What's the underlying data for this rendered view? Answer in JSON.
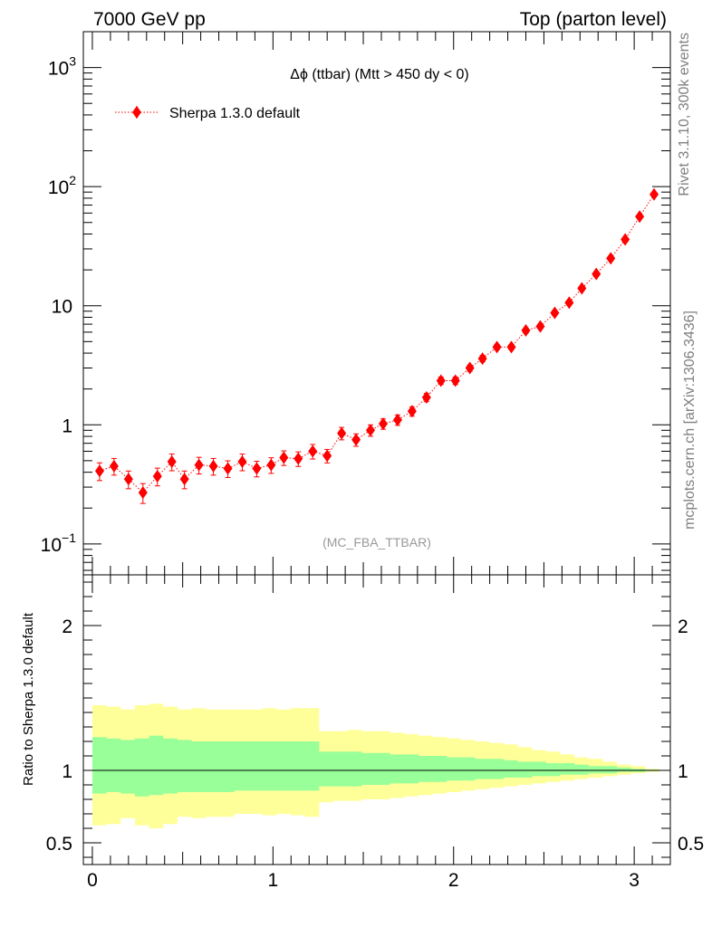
{
  "header": {
    "left": "7000 GeV pp",
    "right": "Top (parton level)"
  },
  "side_labels": {
    "top": "Rivet 3.1.10,  300k events",
    "bottom": "mcplots.cern.ch [arXiv:1306.3436]"
  },
  "chart_data": [
    {
      "panel": "main",
      "type": "line",
      "title": "Δϕ (ttbar) (Mtt > 450 dy < 0)",
      "analysis_tag": "(MC_FBA_TTBAR)",
      "y_scale": "log",
      "xlim": [
        -0.05,
        3.2
      ],
      "ylim": [
        0.055,
        2000
      ],
      "y_ticks": [
        {
          "value": 0.1,
          "base": "10",
          "exp": "−1"
        },
        {
          "value": 1,
          "base": "1",
          "exp": ""
        },
        {
          "value": 10,
          "base": "10",
          "exp": ""
        },
        {
          "value": 100,
          "base": "10",
          "exp": "2"
        },
        {
          "value": 1000,
          "base": "10",
          "exp": "3"
        }
      ],
      "legend": {
        "placement": "top-left",
        "entry": "Sherpa 1.3.0 default"
      },
      "series": [
        {
          "name": "Sherpa 1.3.0 default",
          "color": "#ff0000",
          "marker": "diamond",
          "line_style": "dotted",
          "x": [
            0.04,
            0.12,
            0.2,
            0.28,
            0.36,
            0.44,
            0.51,
            0.59,
            0.67,
            0.75,
            0.83,
            0.91,
            0.99,
            1.06,
            1.14,
            1.22,
            1.3,
            1.38,
            1.46,
            1.54,
            1.61,
            1.69,
            1.77,
            1.85,
            1.93,
            2.01,
            2.09,
            2.16,
            2.24,
            2.32,
            2.4,
            2.48,
            2.56,
            2.64,
            2.71,
            2.79,
            2.87,
            2.95,
            3.03,
            3.11
          ],
          "y": [
            0.41,
            0.45,
            0.35,
            0.27,
            0.37,
            0.49,
            0.35,
            0.46,
            0.45,
            0.43,
            0.49,
            0.43,
            0.46,
            0.53,
            0.52,
            0.6,
            0.55,
            0.85,
            0.75,
            0.9,
            1.02,
            1.1,
            1.3,
            1.7,
            2.35,
            2.35,
            3.0,
            3.6,
            4.5,
            4.5,
            6.2,
            6.7,
            8.7,
            10.6,
            14.0,
            18.5,
            25.0,
            36.0,
            56.0,
            86.0
          ],
          "y_err_frac": [
            0.17,
            0.16,
            0.17,
            0.19,
            0.17,
            0.16,
            0.17,
            0.16,
            0.16,
            0.16,
            0.16,
            0.15,
            0.15,
            0.14,
            0.14,
            0.14,
            0.13,
            0.12,
            0.12,
            0.11,
            0.1,
            0.1,
            0.09,
            0.08,
            0.07,
            0.07,
            0.06,
            0.06,
            0.05,
            0.05,
            0.05,
            0.04,
            0.04,
            0.04,
            0.03,
            0.03,
            0.03,
            0.02,
            0.02,
            0.02
          ]
        }
      ]
    },
    {
      "panel": "ratio",
      "type": "area",
      "ylabel": "Ratio to Sherpa 1.3.0 default",
      "xlim": [
        -0.05,
        3.2
      ],
      "ylim": [
        0.35,
        2.35
      ],
      "x_ticks": [
        0,
        1,
        2,
        3
      ],
      "y_ticks": [
        0.5,
        1,
        2
      ],
      "y_tick_labels": [
        "0.5",
        "1",
        "2"
      ],
      "reference_line": 1,
      "bin_edges": [
        0.0,
        0.0785,
        0.157,
        0.2355,
        0.314,
        0.3925,
        0.471,
        0.5495,
        0.628,
        0.7065,
        0.785,
        0.8635,
        0.942,
        1.0205,
        1.099,
        1.1775,
        1.256,
        1.3345,
        1.413,
        1.4915,
        1.57,
        1.6485,
        1.727,
        1.8055,
        1.884,
        1.9625,
        2.041,
        2.1195,
        2.198,
        2.2765,
        2.355,
        2.4335,
        2.512,
        2.5905,
        2.669,
        2.7475,
        2.826,
        2.9045,
        2.983,
        3.0615,
        3.14
      ],
      "bands": [
        {
          "name": "outer",
          "color": "#ffff99",
          "lo": [
            0.62,
            0.63,
            0.67,
            0.62,
            0.6,
            0.63,
            0.68,
            0.67,
            0.68,
            0.68,
            0.7,
            0.7,
            0.69,
            0.7,
            0.69,
            0.68,
            0.78,
            0.79,
            0.79,
            0.8,
            0.8,
            0.81,
            0.82,
            0.83,
            0.84,
            0.85,
            0.86,
            0.87,
            0.88,
            0.89,
            0.9,
            0.91,
            0.92,
            0.93,
            0.94,
            0.95,
            0.96,
            0.97,
            0.98,
            0.99
          ],
          "hi": [
            1.45,
            1.44,
            1.42,
            1.45,
            1.46,
            1.44,
            1.42,
            1.43,
            1.42,
            1.42,
            1.42,
            1.42,
            1.43,
            1.42,
            1.43,
            1.43,
            1.27,
            1.27,
            1.28,
            1.27,
            1.27,
            1.26,
            1.25,
            1.24,
            1.23,
            1.22,
            1.21,
            1.2,
            1.19,
            1.18,
            1.16,
            1.14,
            1.13,
            1.11,
            1.09,
            1.08,
            1.06,
            1.04,
            1.03,
            1.01
          ]
        },
        {
          "name": "inner",
          "color": "#99ff99",
          "lo": [
            0.84,
            0.85,
            0.84,
            0.82,
            0.83,
            0.84,
            0.85,
            0.85,
            0.85,
            0.85,
            0.86,
            0.86,
            0.86,
            0.86,
            0.86,
            0.86,
            0.89,
            0.89,
            0.89,
            0.9,
            0.9,
            0.91,
            0.91,
            0.92,
            0.92,
            0.93,
            0.93,
            0.94,
            0.94,
            0.95,
            0.95,
            0.96,
            0.96,
            0.97,
            0.97,
            0.98,
            0.98,
            0.99,
            0.99,
            0.995
          ],
          "hi": [
            1.23,
            1.22,
            1.21,
            1.22,
            1.24,
            1.22,
            1.21,
            1.2,
            1.2,
            1.2,
            1.2,
            1.2,
            1.2,
            1.2,
            1.2,
            1.2,
            1.13,
            1.13,
            1.13,
            1.12,
            1.12,
            1.11,
            1.11,
            1.1,
            1.1,
            1.09,
            1.09,
            1.08,
            1.08,
            1.07,
            1.06,
            1.06,
            1.05,
            1.05,
            1.04,
            1.03,
            1.03,
            1.02,
            1.01,
            1.005
          ]
        }
      ]
    }
  ]
}
